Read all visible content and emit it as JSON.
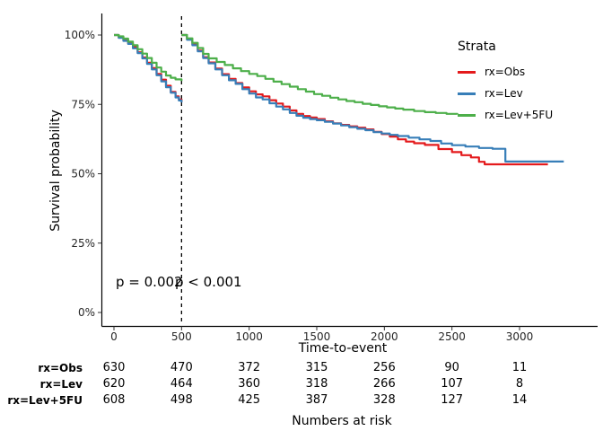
{
  "figure": {
    "ylabel": "Survival probability",
    "xlabel": "Time-to-event",
    "pvalue_1": "p = 0.002",
    "pvalue_2": "p < 0.001"
  },
  "legend": {
    "title": "Strata",
    "entries": [
      {
        "label": "rx=Obs",
        "color": "#E41A1C"
      },
      {
        "label": "rx=Lev",
        "color": "#377EB8"
      },
      {
        "label": "rx=Lev+5FU",
        "color": "#4DAF4A"
      }
    ]
  },
  "chart_data": {
    "type": "line",
    "subtype": "kaplan-meier-step",
    "title": "",
    "xlabel": "Time-to-event",
    "ylabel": "Survival probability",
    "grid": false,
    "legend_position": "top-right",
    "xlim": [
      -90,
      3580
    ],
    "ylim": [
      0,
      105
    ],
    "x_ticks": [
      0,
      500,
      1000,
      1500,
      2000,
      2500,
      3000
    ],
    "y_ticks": [
      0,
      25,
      50,
      75,
      100
    ],
    "y_tick_labels": [
      "0%",
      "25%",
      "50%",
      "75%",
      "100%"
    ],
    "vline_x": 500,
    "annotations": [
      "p = 0.002",
      "p < 0.001"
    ],
    "series": [
      {
        "name": "rx=Obs",
        "color": "#E41A1C",
        "segments": [
          [
            [
              0,
              100
            ],
            [
              35,
              99.2
            ],
            [
              70,
              98.2
            ],
            [
              105,
              97
            ],
            [
              140,
              95.6
            ],
            [
              175,
              93.8
            ],
            [
              210,
              91.9
            ],
            [
              245,
              90
            ],
            [
              280,
              88.1
            ],
            [
              315,
              86
            ],
            [
              350,
              83.9
            ],
            [
              385,
              81.7
            ],
            [
              420,
              79.5
            ],
            [
              455,
              77.9
            ],
            [
              480,
              76.8
            ],
            [
              500,
              76
            ]
          ],
          [
            [
              500,
              100
            ],
            [
              540,
              98.5
            ],
            [
              580,
              96.6
            ],
            [
              620,
              94.4
            ],
            [
              660,
              92
            ],
            [
              700,
              90.1
            ],
            [
              750,
              87.9
            ],
            [
              800,
              85.9
            ],
            [
              850,
              84.2
            ],
            [
              900,
              82.7
            ],
            [
              950,
              81.1
            ],
            [
              1000,
              79.7
            ],
            [
              1050,
              78.6
            ],
            [
              1100,
              77.9
            ],
            [
              1150,
              76.5
            ],
            [
              1200,
              75.3
            ],
            [
              1250,
              74.2
            ],
            [
              1300,
              72.8
            ],
            [
              1350,
              71.6
            ],
            [
              1400,
              70.8
            ],
            [
              1450,
              70.3
            ],
            [
              1500,
              69.7
            ],
            [
              1560,
              68.9
            ],
            [
              1620,
              68.2
            ],
            [
              1680,
              67.6
            ],
            [
              1740,
              67.1
            ],
            [
              1800,
              66.6
            ],
            [
              1860,
              66
            ],
            [
              1920,
              65.1
            ],
            [
              1980,
              64.3
            ],
            [
              2040,
              63.4
            ],
            [
              2100,
              62.4
            ],
            [
              2160,
              61.6
            ],
            [
              2220,
              61
            ],
            [
              2300,
              60.4
            ],
            [
              2400,
              58.9
            ],
            [
              2500,
              57.8
            ],
            [
              2570,
              56.7
            ],
            [
              2640,
              55.9
            ],
            [
              2700,
              54.3
            ],
            [
              2742,
              53.4
            ],
            [
              3210,
              53.4
            ]
          ]
        ]
      },
      {
        "name": "rx=Lev",
        "color": "#377EB8",
        "segments": [
          [
            [
              0,
              100
            ],
            [
              35,
              99
            ],
            [
              70,
              97.9
            ],
            [
              105,
              96.8
            ],
            [
              140,
              95.2
            ],
            [
              175,
              93.5
            ],
            [
              210,
              91.6
            ],
            [
              245,
              89.6
            ],
            [
              280,
              87.6
            ],
            [
              315,
              85.5
            ],
            [
              350,
              83.3
            ],
            [
              385,
              81.2
            ],
            [
              420,
              79.2
            ],
            [
              455,
              77.5
            ],
            [
              480,
              76.4
            ],
            [
              500,
              75.7
            ]
          ],
          [
            [
              500,
              100
            ],
            [
              540,
              98.3
            ],
            [
              580,
              96.3
            ],
            [
              620,
              94.1
            ],
            [
              660,
              91.7
            ],
            [
              700,
              89.8
            ],
            [
              750,
              87.6
            ],
            [
              800,
              85.5
            ],
            [
              850,
              83.7
            ],
            [
              900,
              82.4
            ],
            [
              950,
              80.5
            ],
            [
              1000,
              78.9
            ],
            [
              1050,
              77.5
            ],
            [
              1100,
              76.8
            ],
            [
              1150,
              75.4
            ],
            [
              1200,
              74.2
            ],
            [
              1250,
              73.2
            ],
            [
              1300,
              71.9
            ],
            [
              1350,
              70.9
            ],
            [
              1400,
              70.2
            ],
            [
              1450,
              69.7
            ],
            [
              1500,
              69.3
            ],
            [
              1560,
              68.7
            ],
            [
              1620,
              68.1
            ],
            [
              1680,
              67.4
            ],
            [
              1740,
              66.8
            ],
            [
              1800,
              66.2
            ],
            [
              1860,
              65.7
            ],
            [
              1920,
              65
            ],
            [
              1980,
              64.5
            ],
            [
              2040,
              64
            ],
            [
              2100,
              63.6
            ],
            [
              2180,
              63
            ],
            [
              2260,
              62.4
            ],
            [
              2340,
              61.8
            ],
            [
              2420,
              60.9
            ],
            [
              2500,
              60.3
            ],
            [
              2600,
              59.8
            ],
            [
              2700,
              59.3
            ],
            [
              2800,
              59
            ],
            [
              2895,
              54.4
            ],
            [
              3327,
              54.4
            ]
          ]
        ]
      },
      {
        "name": "rx=Lev+5FU",
        "color": "#4DAF4A",
        "segments": [
          [
            [
              0,
              100
            ],
            [
              35,
              99.5
            ],
            [
              70,
              98.7
            ],
            [
              105,
              97.6
            ],
            [
              140,
              96.3
            ],
            [
              175,
              94.9
            ],
            [
              210,
              93.3
            ],
            [
              245,
              91.7
            ],
            [
              280,
              90
            ],
            [
              315,
              88.3
            ],
            [
              350,
              86.8
            ],
            [
              385,
              85.4
            ],
            [
              420,
              84.6
            ],
            [
              455,
              84
            ],
            [
              500,
              83.4
            ]
          ],
          [
            [
              500,
              100
            ],
            [
              540,
              98.8
            ],
            [
              580,
              97.2
            ],
            [
              620,
              95.3
            ],
            [
              660,
              93.2
            ],
            [
              700,
              91.6
            ],
            [
              760,
              90.3
            ],
            [
              820,
              89.2
            ],
            [
              880,
              88
            ],
            [
              940,
              87
            ],
            [
              1000,
              86
            ],
            [
              1060,
              85.2
            ],
            [
              1120,
              84.2
            ],
            [
              1180,
              83.2
            ],
            [
              1240,
              82.3
            ],
            [
              1300,
              81.4
            ],
            [
              1360,
              80.5
            ],
            [
              1420,
              79.6
            ],
            [
              1480,
              78.7
            ],
            [
              1540,
              78.1
            ],
            [
              1600,
              77.4
            ],
            [
              1660,
              76.8
            ],
            [
              1720,
              76.2
            ],
            [
              1780,
              75.8
            ],
            [
              1840,
              75.2
            ],
            [
              1900,
              74.8
            ],
            [
              1960,
              74.3
            ],
            [
              2020,
              73.9
            ],
            [
              2080,
              73.5
            ],
            [
              2140,
              73.1
            ],
            [
              2220,
              72.6
            ],
            [
              2300,
              72.2
            ],
            [
              2380,
              71.9
            ],
            [
              2460,
              71.6
            ],
            [
              2540,
              71.5
            ]
          ]
        ]
      }
    ]
  },
  "risk_table": {
    "caption": "Numbers at risk",
    "times": [
      0,
      500,
      1000,
      1500,
      2000,
      2500,
      3000
    ],
    "rows": [
      {
        "label": "rx=Obs",
        "values": [
          630,
          470,
          372,
          315,
          256,
          90,
          11
        ]
      },
      {
        "label": "rx=Lev",
        "values": [
          620,
          464,
          360,
          318,
          266,
          107,
          8
        ]
      },
      {
        "label": "rx=Lev+5FU",
        "values": [
          608,
          498,
          425,
          387,
          328,
          127,
          14
        ]
      }
    ]
  }
}
